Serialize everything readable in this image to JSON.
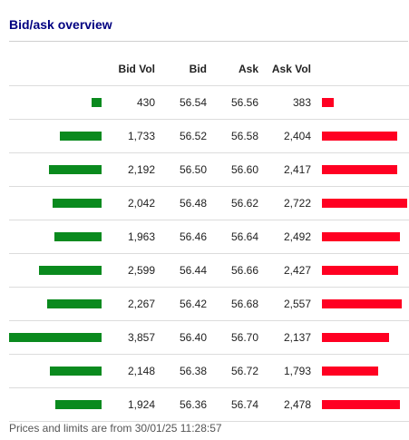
{
  "header": {
    "title": "Bid/ask overview"
  },
  "table": {
    "columns": {
      "bid_vol": "Bid Vol",
      "bid": "Bid",
      "ask": "Ask",
      "ask_vol": "Ask Vol"
    },
    "rows": [
      {
        "bid_vol": "430",
        "bid": "56.54",
        "ask": "56.56",
        "ask_vol": "383"
      },
      {
        "bid_vol": "1,733",
        "bid": "56.52",
        "ask": "56.58",
        "ask_vol": "2,404"
      },
      {
        "bid_vol": "2,192",
        "bid": "56.50",
        "ask": "56.60",
        "ask_vol": "2,417"
      },
      {
        "bid_vol": "2,042",
        "bid": "56.48",
        "ask": "56.62",
        "ask_vol": "2,722"
      },
      {
        "bid_vol": "1,963",
        "bid": "56.46",
        "ask": "56.64",
        "ask_vol": "2,492"
      },
      {
        "bid_vol": "2,599",
        "bid": "56.44",
        "ask": "56.66",
        "ask_vol": "2,427"
      },
      {
        "bid_vol": "2,267",
        "bid": "56.42",
        "ask": "56.68",
        "ask_vol": "2,557"
      },
      {
        "bid_vol": "3,857",
        "bid": "56.40",
        "ask": "56.70",
        "ask_vol": "2,137"
      },
      {
        "bid_vol": "2,148",
        "bid": "56.38",
        "ask": "56.72",
        "ask_vol": "1,793"
      },
      {
        "bid_vol": "1,924",
        "bid": "56.36",
        "ask": "56.74",
        "ask_vol": "2,478"
      }
    ]
  },
  "colors": {
    "title": "#000080",
    "bid_bar": "#0a8a1e",
    "ask_bar": "#ff0022"
  },
  "footer": {
    "note": "Prices and limits are from 30/01/25 11:28:57"
  }
}
